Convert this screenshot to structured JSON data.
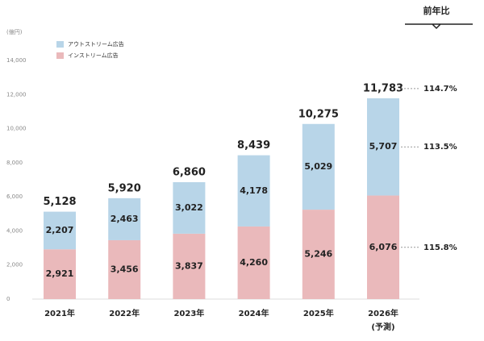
{
  "chart_data": {
    "type": "stacked_bar",
    "y_unit": "(億円)",
    "categories": [
      "2021年",
      "2022年",
      "2023年",
      "2024年",
      "2025年",
      "2026年"
    ],
    "forecast_label": "(予測)",
    "series": [
      {
        "name": "インストリーム広告",
        "color": "#eab9bb",
        "values": [
          2921,
          3456,
          3837,
          4260,
          5246,
          6076
        ],
        "value_labels": [
          "2,921",
          "3,456",
          "3,837",
          "4,260",
          "5,246",
          "6,076"
        ]
      },
      {
        "name": "アウトストリーム広告",
        "color": "#b8d5e8",
        "values": [
          2207,
          2463,
          3022,
          4178,
          5029,
          5707
        ],
        "value_labels": [
          "2,207",
          "2,463",
          "3,022",
          "4,178",
          "5,029",
          "5,707"
        ]
      }
    ],
    "totals": [
      5128,
      5920,
      6860,
      8439,
      10275,
      11783
    ],
    "total_labels": [
      "5,128",
      "5,920",
      "6,860",
      "8,439",
      "10,275",
      "11,783"
    ],
    "ylim": [
      0,
      14000
    ],
    "yticks": [
      0,
      {
        "value": 2000,
        "label": "2,000"
      },
      {
        "value": 4000,
        "label": "4,000"
      },
      {
        "value": 6000,
        "label": "6,000"
      },
      {
        "value": 8000,
        "label": "8,000"
      },
      {
        "value": 10000,
        "label": "10,000"
      },
      {
        "value": 12000,
        "label": "12,000"
      },
      {
        "value": 14000,
        "label": "14,000"
      }
    ],
    "yoy": {
      "title": "前年比",
      "items": [
        {
          "value": 114.7,
          "label": "114.7%"
        },
        {
          "value": 113.5,
          "label": "113.5%"
        },
        {
          "value": 115.8,
          "label": "115.8%"
        }
      ]
    }
  }
}
